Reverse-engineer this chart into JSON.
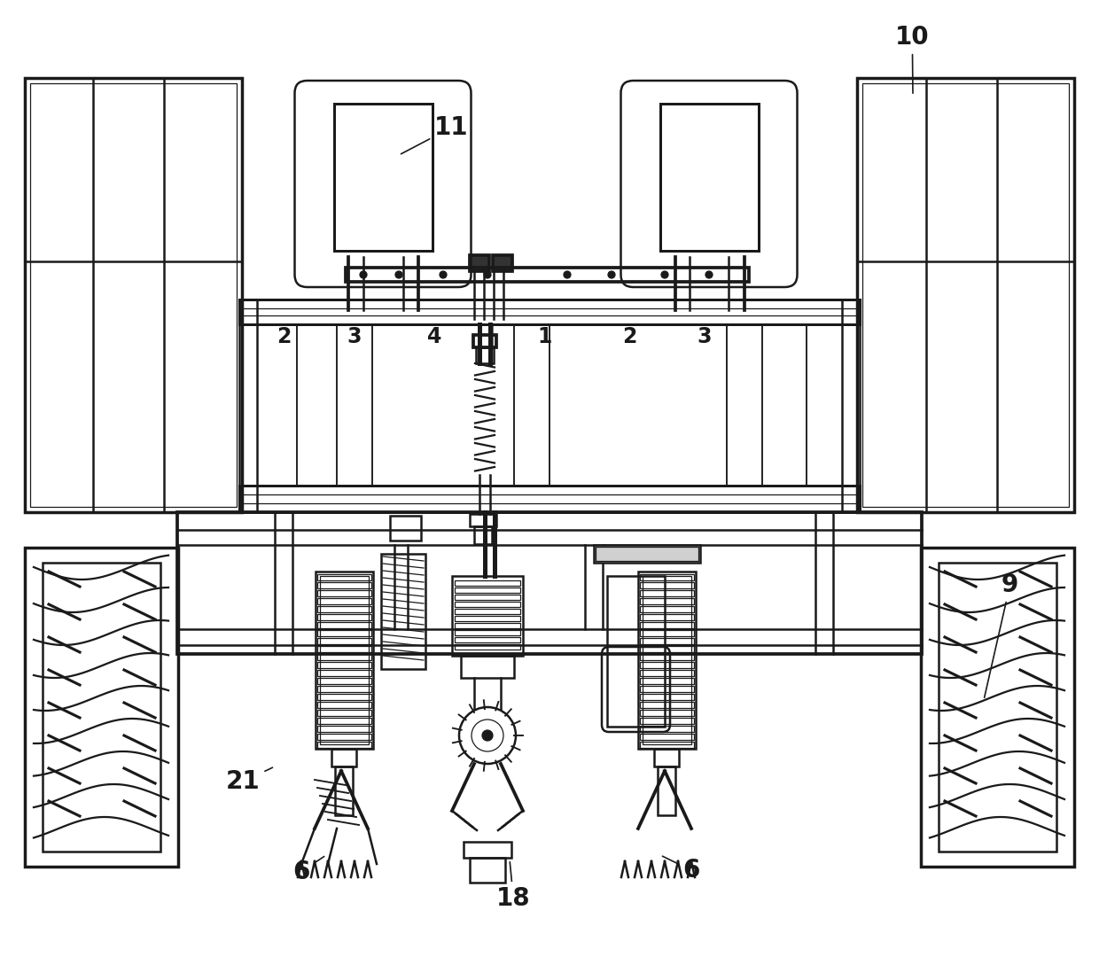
{
  "bg_color": "#ffffff",
  "lc": "#1a1a1a",
  "lw": 1.8,
  "lwt": 0.9,
  "lwk": 2.5,
  "fs_label": 20,
  "fs_num": 16,
  "ann_lw": 1.2
}
